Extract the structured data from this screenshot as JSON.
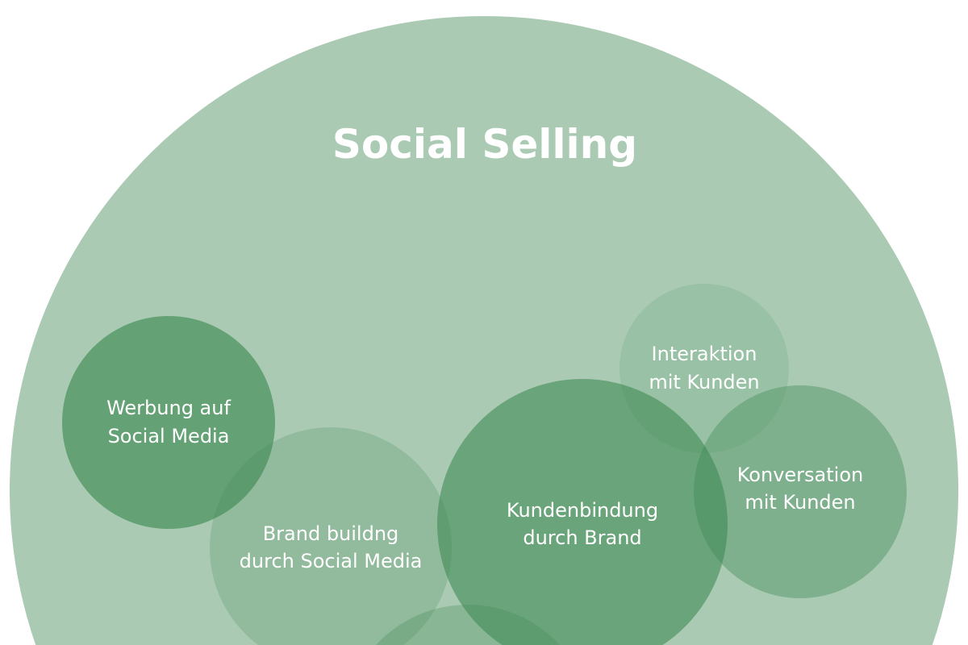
{
  "title": "Social Selling",
  "colors": {
    "outer": "#aacab3",
    "circle_base": "#3f8a54",
    "text": "#ffffff",
    "background": "#ffffff"
  },
  "circles": [
    {
      "id": "werbung",
      "lines": [
        "Werbung auf",
        "Social Media"
      ],
      "opacity": 0.65
    },
    {
      "id": "brand",
      "lines": [
        "Brand buildng",
        "durch Social Media"
      ],
      "opacity": 0.22
    },
    {
      "id": "kundenbindung",
      "lines": [
        "Kundenbindung",
        "durch Brand"
      ],
      "opacity": 0.6
    },
    {
      "id": "interaktion",
      "lines": [
        "Interaktion",
        "mit Kunden"
      ],
      "opacity": 0.15
    },
    {
      "id": "konversation",
      "lines": [
        "Konversation",
        "mit Kunden"
      ],
      "opacity": 0.4
    },
    {
      "id": "bottom",
      "lines": [],
      "opacity": 0.3
    }
  ]
}
